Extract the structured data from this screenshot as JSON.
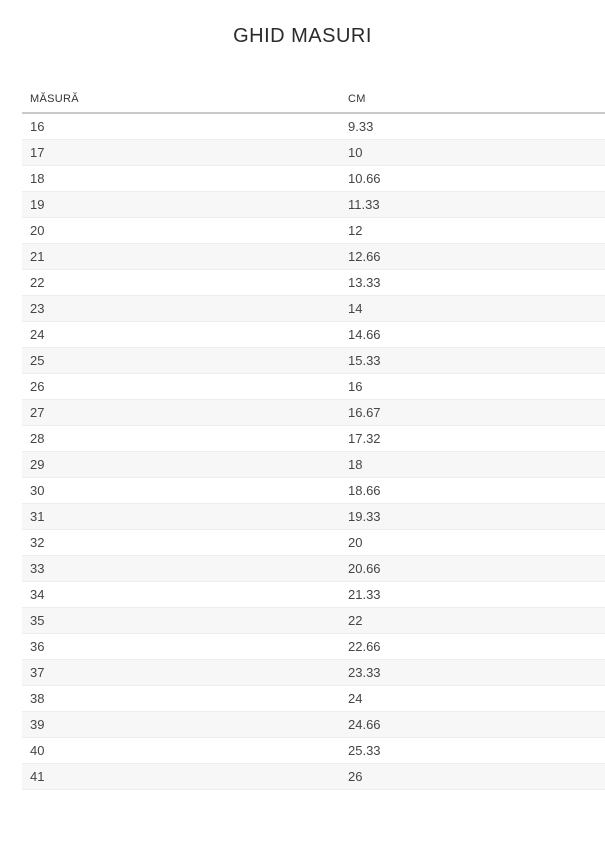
{
  "title": "GHID MASURI",
  "table": {
    "columns": {
      "size": "MĂSURĂ",
      "cm": "CM"
    },
    "rows": [
      {
        "size": "16",
        "cm": "9.33"
      },
      {
        "size": "17",
        "cm": "10"
      },
      {
        "size": "18",
        "cm": "10.66"
      },
      {
        "size": "19",
        "cm": "11.33"
      },
      {
        "size": "20",
        "cm": "12"
      },
      {
        "size": "21",
        "cm": "12.66"
      },
      {
        "size": "22",
        "cm": "13.33"
      },
      {
        "size": "23",
        "cm": "14"
      },
      {
        "size": "24",
        "cm": "14.66"
      },
      {
        "size": "25",
        "cm": "15.33"
      },
      {
        "size": "26",
        "cm": "16"
      },
      {
        "size": "27",
        "cm": "16.67"
      },
      {
        "size": "28",
        "cm": "17.32"
      },
      {
        "size": "29",
        "cm": "18"
      },
      {
        "size": "30",
        "cm": "18.66"
      },
      {
        "size": "31",
        "cm": "19.33"
      },
      {
        "size": "32",
        "cm": "20"
      },
      {
        "size": "33",
        "cm": "20.66"
      },
      {
        "size": "34",
        "cm": "21.33"
      },
      {
        "size": "35",
        "cm": "22"
      },
      {
        "size": "36",
        "cm": "22.66"
      },
      {
        "size": "37",
        "cm": "23.33"
      },
      {
        "size": "38",
        "cm": "24"
      },
      {
        "size": "39",
        "cm": "24.66"
      },
      {
        "size": "40",
        "cm": "25.33"
      },
      {
        "size": "41",
        "cm": "26"
      }
    ]
  },
  "colors": {
    "stripe": "#f7f7f7",
    "header-border": "#c9c9c9",
    "row-border": "#ededed",
    "title-color": "#2b2b2b",
    "header-color": "#333333",
    "cell-color": "#454545"
  }
}
